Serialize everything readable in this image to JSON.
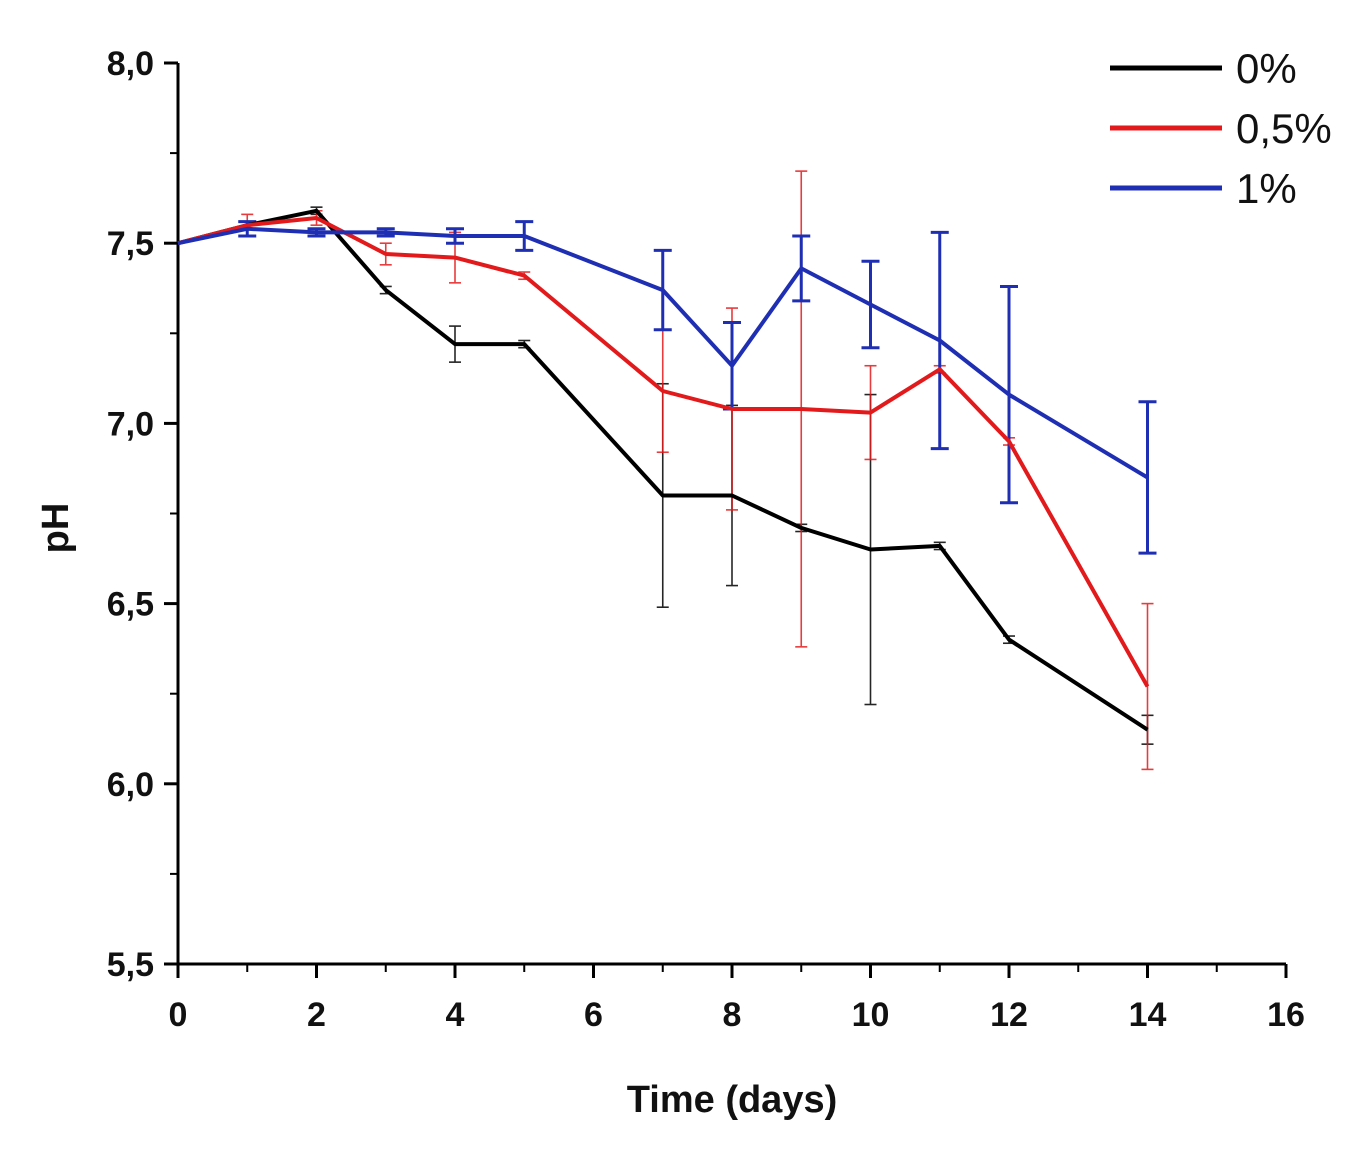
{
  "chart_data": {
    "type": "line",
    "title": "",
    "xlabel": "Time (days)",
    "ylabel": "pH",
    "xlim": [
      0,
      16
    ],
    "ylim": [
      5.5,
      8.0
    ],
    "x_ticks": [
      "0",
      "2",
      "4",
      "6",
      "8",
      "10",
      "12",
      "14",
      "16"
    ],
    "y_ticks": [
      "5,5",
      "6,0",
      "6,5",
      "7,0",
      "7,5",
      "8,0"
    ],
    "legend_position": "top-right",
    "x": [
      0,
      1,
      2,
      3,
      4,
      5,
      7,
      8,
      9,
      10,
      11,
      12,
      14
    ],
    "series": [
      {
        "name": "0%",
        "color": "#000000",
        "values": [
          7.5,
          7.55,
          7.59,
          7.37,
          7.22,
          7.22,
          6.8,
          6.8,
          6.71,
          6.65,
          6.66,
          6.4,
          6.15
        ],
        "errors": [
          0.0,
          0.01,
          0.01,
          0.01,
          0.05,
          0.01,
          0.31,
          0.25,
          0.01,
          0.43,
          0.01,
          0.01,
          0.04
        ]
      },
      {
        "name": "0,5%",
        "color": "#e31a1c",
        "values": [
          7.5,
          7.55,
          7.57,
          7.47,
          7.46,
          7.41,
          7.09,
          7.04,
          7.04,
          7.03,
          7.15,
          6.95,
          6.27
        ],
        "errors": [
          0.0,
          0.03,
          0.02,
          0.03,
          0.07,
          0.01,
          0.17,
          0.28,
          0.66,
          0.13,
          0.01,
          0.01,
          0.23
        ]
      },
      {
        "name": "1%",
        "color": "#1f2fb3",
        "values": [
          7.5,
          7.54,
          7.53,
          7.53,
          7.52,
          7.52,
          7.37,
          7.16,
          7.43,
          7.33,
          7.23,
          7.08,
          6.85
        ],
        "errors": [
          0.0,
          0.02,
          0.01,
          0.01,
          0.02,
          0.04,
          0.11,
          0.12,
          0.09,
          0.12,
          0.3,
          0.3,
          0.21
        ]
      }
    ]
  }
}
